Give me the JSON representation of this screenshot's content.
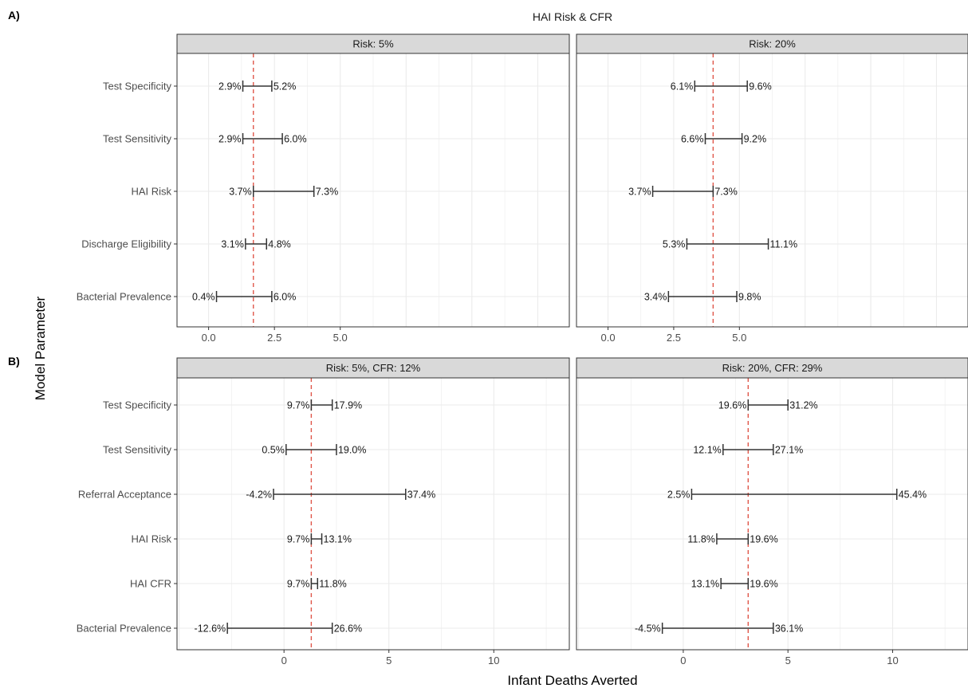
{
  "title": "HAI Risk & CFR",
  "ylabel": "Model Parameter",
  "xlabel": "Infant Deaths Averted",
  "section_a": "A)",
  "section_b": "B)",
  "colors": {
    "ref_line": "#e0574a",
    "bar": "#333333",
    "strip": "#d9d9d9",
    "grid": "#ebebeb"
  },
  "chart_data": [
    {
      "type": "tornado",
      "panel": "Risk: 5%",
      "ref": 1.7,
      "xlim": [
        -1.2,
        13.7
      ],
      "ticks": [
        0,
        2.5,
        5
      ],
      "tick_labels": [
        "0.0",
        "2.5",
        "5.0"
      ],
      "rows": [
        {
          "param": "Test Specificity",
          "low": 1.3,
          "high": 2.4,
          "low_label": "2.9%",
          "high_label": "5.2%"
        },
        {
          "param": "Test Sensitivity",
          "low": 1.3,
          "high": 2.8,
          "low_label": "2.9%",
          "high_label": "6.0%"
        },
        {
          "param": "HAI Risk",
          "low": 1.7,
          "high": 4.0,
          "low_label": "3.7%",
          "high_label": "7.3%"
        },
        {
          "param": "Discharge Eligibility",
          "low": 1.4,
          "high": 2.2,
          "low_label": "3.1%",
          "high_label": "4.8%"
        },
        {
          "param": "Bacterial Prevalence",
          "low": 0.3,
          "high": 2.4,
          "low_label": "0.4%",
          "high_label": "6.0%"
        }
      ]
    },
    {
      "type": "tornado",
      "panel": "Risk: 20%",
      "ref": 4.0,
      "xlim": [
        -1.2,
        13.7
      ],
      "ticks": [
        0,
        2.5,
        5
      ],
      "tick_labels": [
        "0.0",
        "2.5",
        "5.0"
      ],
      "rows": [
        {
          "param": "Test Specificity",
          "low": 3.3,
          "high": 5.3,
          "low_label": "6.1%",
          "high_label": "9.6%"
        },
        {
          "param": "Test Sensitivity",
          "low": 3.7,
          "high": 5.1,
          "low_label": "6.6%",
          "high_label": "9.2%"
        },
        {
          "param": "HAI Risk",
          "low": 1.7,
          "high": 4.0,
          "low_label": "3.7%",
          "high_label": "7.3%"
        },
        {
          "param": "Discharge Eligibility",
          "low": 3.0,
          "high": 6.1,
          "low_label": "5.3%",
          "high_label": "11.1%"
        },
        {
          "param": "Bacterial Prevalence",
          "low": 2.3,
          "high": 4.9,
          "low_label": "3.4%",
          "high_label": "9.8%"
        }
      ]
    },
    {
      "type": "tornado",
      "panel": "Risk: 5%, CFR: 12%",
      "ref": 1.3,
      "xlim": [
        -5.1,
        13.6
      ],
      "ticks": [
        0,
        5,
        10
      ],
      "tick_labels": [
        "0",
        "5",
        "10"
      ],
      "rows": [
        {
          "param": "Test Specificity",
          "low": 1.3,
          "high": 2.3,
          "low_label": "9.7%",
          "high_label": "17.9%"
        },
        {
          "param": "Test Sensitivity",
          "low": 0.1,
          "high": 2.5,
          "low_label": "0.5%",
          "high_label": "19.0%"
        },
        {
          "param": "Referral Acceptance",
          "low": -0.5,
          "high": 5.8,
          "low_label": "-4.2%",
          "high_label": "37.4%"
        },
        {
          "param": "HAI Risk",
          "low": 1.3,
          "high": 1.8,
          "low_label": "9.7%",
          "high_label": "13.1%"
        },
        {
          "param": "HAI CFR",
          "low": 1.3,
          "high": 1.6,
          "low_label": "9.7%",
          "high_label": "11.8%"
        },
        {
          "param": "Bacterial Prevalence",
          "low": -2.7,
          "high": 2.3,
          "low_label": "-12.6%",
          "high_label": "26.6%"
        }
      ]
    },
    {
      "type": "tornado",
      "panel": "Risk: 20%, CFR: 29%",
      "ref": 3.1,
      "xlim": [
        -5.1,
        13.6
      ],
      "ticks": [
        0,
        5,
        10
      ],
      "tick_labels": [
        "0",
        "5",
        "10"
      ],
      "rows": [
        {
          "param": "Test Specificity",
          "low": 3.1,
          "high": 5.0,
          "low_label": "19.6%",
          "high_label": "31.2%"
        },
        {
          "param": "Test Sensitivity",
          "low": 1.9,
          "high": 4.3,
          "low_label": "12.1%",
          "high_label": "27.1%"
        },
        {
          "param": "Referral Acceptance",
          "low": 0.4,
          "high": 10.2,
          "low_label": "2.5%",
          "high_label": "45.4%"
        },
        {
          "param": "HAI Risk",
          "low": 1.6,
          "high": 3.1,
          "low_label": "11.8%",
          "high_label": "19.6%"
        },
        {
          "param": "HAI CFR",
          "low": 1.8,
          "high": 3.1,
          "low_label": "13.1%",
          "high_label": "19.6%"
        },
        {
          "param": "Bacterial Prevalence",
          "low": -1.0,
          "high": 4.3,
          "low_label": "-4.5%",
          "high_label": "36.1%"
        }
      ]
    }
  ]
}
